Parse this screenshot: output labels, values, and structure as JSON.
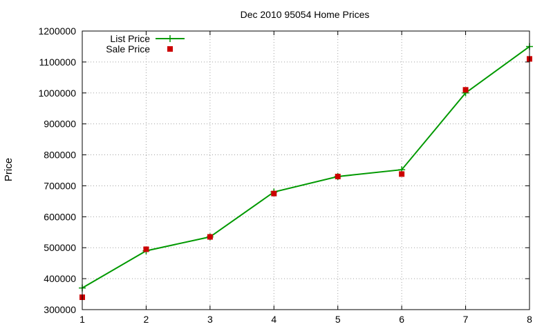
{
  "chart_data": {
    "type": "line",
    "title": "Dec 2010 95054 Home Prices",
    "xlabel": "",
    "ylabel": "Price",
    "x": [
      1,
      2,
      3,
      4,
      5,
      6,
      7,
      8
    ],
    "xlim": [
      1,
      8
    ],
    "ylim": [
      300000,
      1200000
    ],
    "xticks": [
      "1",
      "2",
      "3",
      "4",
      "5",
      "6",
      "7",
      "8"
    ],
    "yticks": [
      "300000",
      "400000",
      "500000",
      "600000",
      "700000",
      "800000",
      "900000",
      "1000000",
      "1100000",
      "1200000"
    ],
    "grid": true,
    "legend_position": "top-left",
    "series": [
      {
        "name": "List Price",
        "style": "line-with-plus-markers",
        "color": "#009900",
        "values": [
          370000,
          490000,
          535000,
          680000,
          730000,
          752000,
          1000000,
          1150000
        ]
      },
      {
        "name": "Sale Price",
        "style": "square-markers",
        "color": "#cc0000",
        "values": [
          340000,
          495000,
          535000,
          675000,
          730000,
          738000,
          1010000,
          1110000
        ]
      }
    ]
  }
}
